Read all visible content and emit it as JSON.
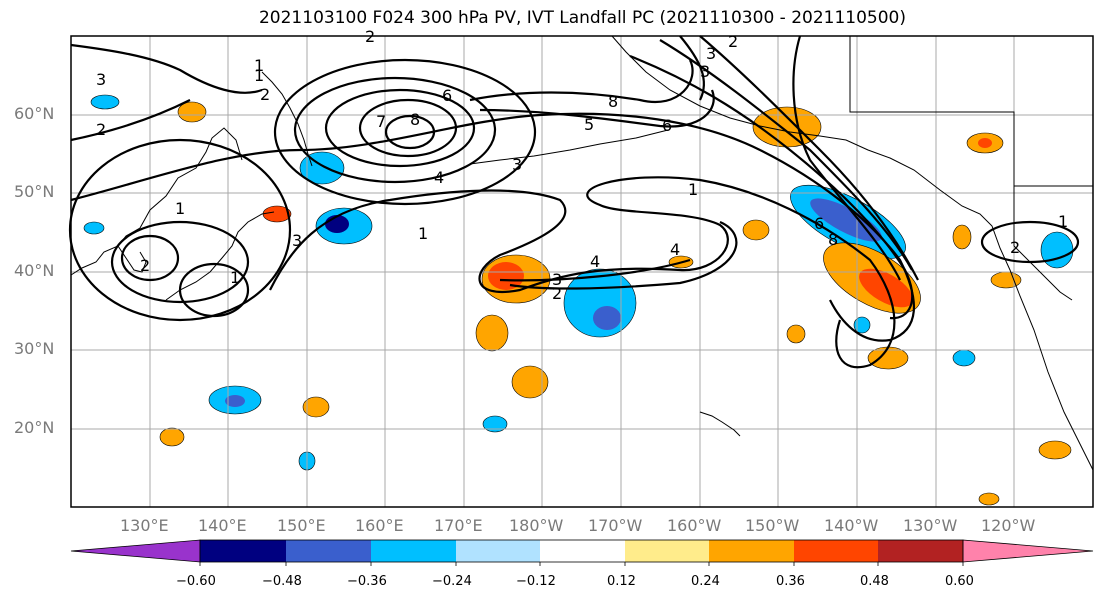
{
  "title": "2021103100 F024 300 hPa PV, IVT Landfall PC (2021110300 - 2021110500)",
  "map": {
    "lat_labels": [
      "60°N",
      "50°N",
      "40°N",
      "30°N",
      "20°N"
    ],
    "lon_labels": [
      "130°E",
      "140°E",
      "150°E",
      "160°E",
      "170°E",
      "180°W",
      "170°W",
      "160°W",
      "150°W",
      "140°W",
      "130°W",
      "120°W"
    ],
    "contour_labels": [
      "3",
      "2",
      "1",
      "2",
      "1",
      "2",
      "3",
      "1",
      "1",
      "2",
      "6",
      "7",
      "8",
      "4",
      "3",
      "5",
      "6",
      "8",
      "3",
      "1",
      "3",
      "2",
      "4",
      "4",
      "6",
      "8",
      "1",
      "2",
      "1",
      "3",
      "2"
    ]
  },
  "colorbar": {
    "ticks": [
      "−0.60",
      "−0.48",
      "−0.36",
      "−0.24",
      "−0.12",
      "0.12",
      "0.24",
      "0.36",
      "0.48",
      "0.60"
    ],
    "colors": [
      "#9933cc",
      "#000080",
      "#3a5fcd",
      "#00bfff",
      "#b0e2ff",
      "#ffffff",
      "#ffec8b",
      "#ffa500",
      "#ff4500",
      "#b22222",
      "#ff82ab"
    ]
  }
}
